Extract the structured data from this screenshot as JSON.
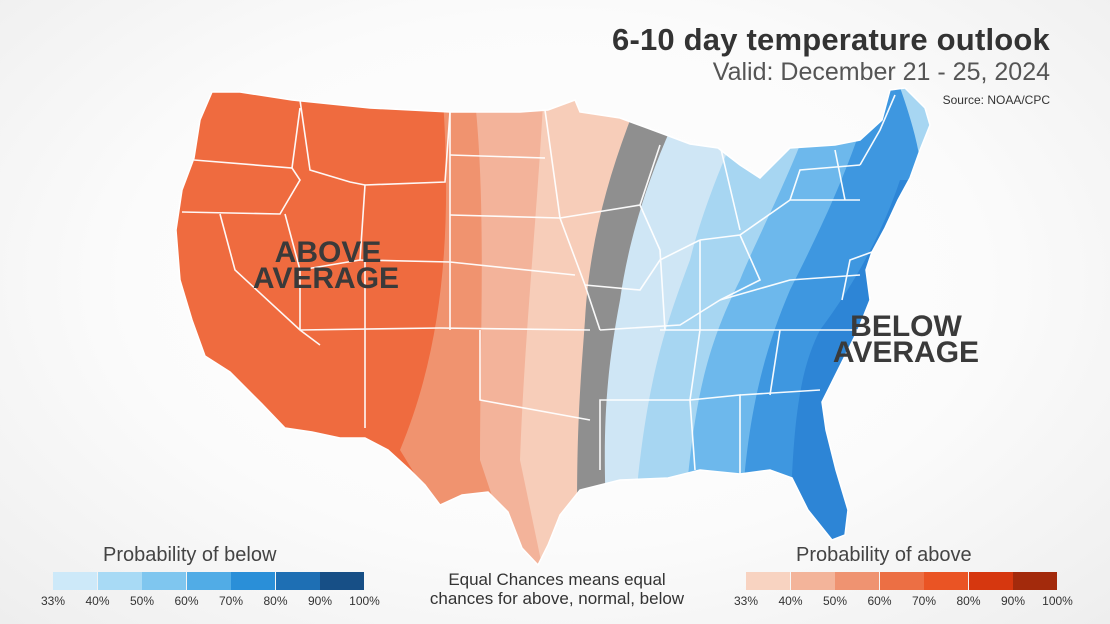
{
  "header": {
    "title": "6-10 day temperature outlook",
    "subtitle": "Valid: December 21 - 25, 2024",
    "source": "Source: NOAA/CPC"
  },
  "map": {
    "label_above_line1": "ABOVE",
    "label_above_line2": "AVERAGE",
    "label_below_line1": "BELOW",
    "label_below_line2": "AVERAGE"
  },
  "legend_below": {
    "title": "Probability of below",
    "ticks": [
      "33%",
      "40%",
      "50%",
      "60%",
      "70%",
      "80%",
      "90%",
      "100%"
    ],
    "colors": [
      "#cde9f9",
      "#a8daf5",
      "#7fc6ef",
      "#51ace6",
      "#2a8fd8",
      "#1e6fb4",
      "#174f86"
    ]
  },
  "legend_above": {
    "title": "Probability of above",
    "ticks": [
      "33%",
      "40%",
      "50%",
      "60%",
      "70%",
      "80%",
      "90%",
      "100%"
    ],
    "colors": [
      "#f8d3c1",
      "#f3b49a",
      "#ef9371",
      "#ec6f44",
      "#ea5424",
      "#d6370f",
      "#a32a0c"
    ]
  },
  "footer": {
    "equal_line1": "Equal Chances means equal",
    "equal_line2": "chances for above, normal, below"
  },
  "colors": {
    "above_strong": "#ef6b3f",
    "above_mid": "#f0936f",
    "above_light": "#f3b39a",
    "above_faint": "#f7cdb9",
    "equal_chances": "#8f8f8f",
    "below_faint": "#cfe6f5",
    "below_light": "#a7d6f2",
    "below_mid": "#6db8ec",
    "below_strong": "#3e97e0",
    "below_deep": "#2d85d6"
  }
}
